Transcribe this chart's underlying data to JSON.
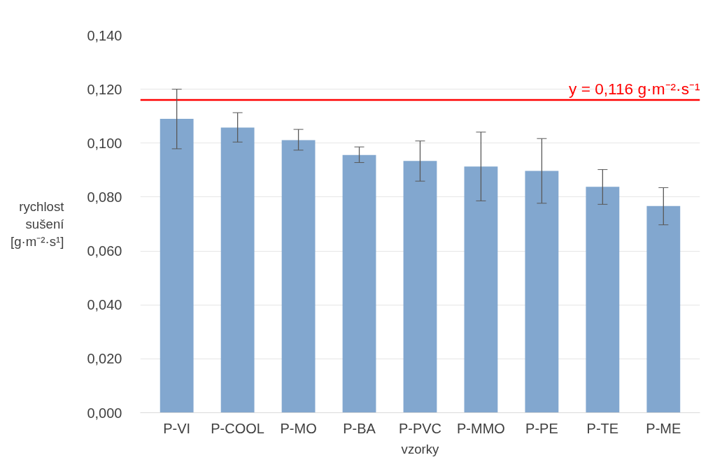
{
  "chart_data": {
    "type": "bar",
    "xlabel": "vzorky",
    "ylabel": "rychlost sušení [g·m⁻²·s¹]",
    "categories": [
      "P-VI",
      "P-COOL",
      "P-MO",
      "P-BA",
      "P-PVC",
      "P-MMO",
      "P-PE",
      "P-TE",
      "P-ME"
    ],
    "values": [
      0.109,
      0.1058,
      0.1011,
      0.0956,
      0.0934,
      0.0913,
      0.0897,
      0.0838,
      0.0767
    ],
    "errors": [
      [
        0.0979,
        0.12
      ],
      [
        0.1004,
        0.1113
      ],
      [
        0.0974,
        0.1051
      ],
      [
        0.0928,
        0.0986
      ],
      [
        0.0859,
        0.1008
      ],
      [
        0.0786,
        0.1041
      ],
      [
        0.0777,
        0.1017
      ],
      [
        0.0773,
        0.0902
      ],
      [
        0.0697,
        0.0835
      ]
    ],
    "color": "#82a7cf",
    "ylim": [
      0,
      0.14
    ],
    "yticks": [
      {
        "value": 0,
        "label": "0,000"
      },
      {
        "value": 0.02,
        "label": "0,020"
      },
      {
        "value": 0.04,
        "label": "0,040"
      },
      {
        "value": 0.06,
        "label": "0,060"
      },
      {
        "value": 0.08,
        "label": "0,080"
      },
      {
        "value": 0.1,
        "label": "0,100"
      },
      {
        "value": 0.12,
        "label": "0,120"
      },
      {
        "value": 0.14,
        "label": "0,140"
      }
    ],
    "grid": "y",
    "ref_lines": [
      {
        "axis": "y",
        "value": 0.116,
        "label": "y = 0,116 g·m⁻²·s⁻¹",
        "color": "#ff0000"
      }
    ]
  }
}
